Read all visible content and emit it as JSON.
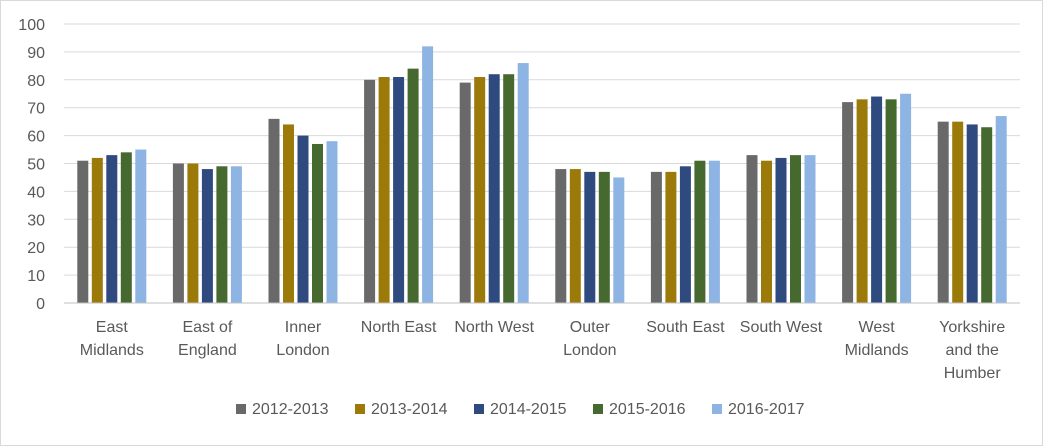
{
  "chart_data": {
    "type": "bar",
    "ylim": [
      0,
      100
    ],
    "ytick_step": 10,
    "grid": true,
    "legend_position": "bottom",
    "categories": [
      [
        "East",
        "Midlands"
      ],
      [
        "East of",
        "England"
      ],
      [
        "Inner",
        "London"
      ],
      [
        "North East"
      ],
      [
        "North West"
      ],
      [
        "Outer",
        "London"
      ],
      [
        "South East"
      ],
      [
        "South West"
      ],
      [
        "West",
        "Midlands"
      ],
      [
        "Yorkshire",
        "and the",
        "Humber"
      ]
    ],
    "series": [
      {
        "name": "2012-2013",
        "color": "#696969",
        "values": [
          51,
          50,
          66,
          80,
          79,
          48,
          47,
          53,
          72,
          65
        ]
      },
      {
        "name": "2013-2014",
        "color": "#9c7a0a",
        "values": [
          52,
          50,
          64,
          81,
          81,
          48,
          47,
          51,
          73,
          65
        ]
      },
      {
        "name": "2014-2015",
        "color": "#2f4a7f",
        "values": [
          53,
          48,
          60,
          81,
          82,
          47,
          49,
          52,
          74,
          64
        ]
      },
      {
        "name": "2015-2016",
        "color": "#46692f",
        "values": [
          54,
          49,
          57,
          84,
          82,
          47,
          51,
          53,
          73,
          63
        ]
      },
      {
        "name": "2016-2017",
        "color": "#8eb4e3",
        "values": [
          55,
          49,
          58,
          92,
          86,
          45,
          51,
          53,
          75,
          67
        ]
      }
    ]
  }
}
